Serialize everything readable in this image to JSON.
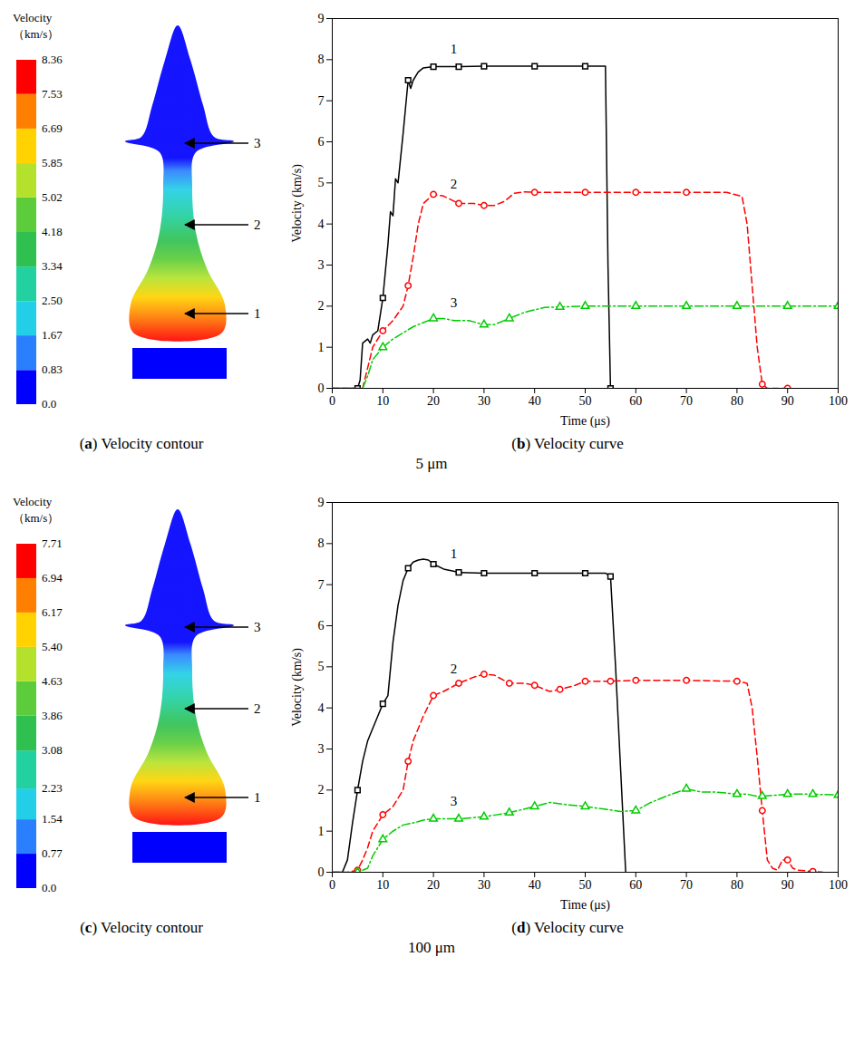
{
  "chart_data": [
    {
      "type": "contour",
      "caption": "(a) Velocity contour",
      "colorbar": {
        "title": "Velocity\n（km/s）",
        "range": [
          0,
          8.36
        ],
        "ticks": [
          {
            "value": 0,
            "label": "0.0"
          },
          0.83,
          1.67,
          {
            "value": 2.5,
            "label": "2.50"
          },
          3.34,
          4.18,
          5.02,
          5.85,
          6.69,
          7.53,
          8.36
        ],
        "colors": [
          "#0000ff",
          "#2a7fff",
          "#22cfe6",
          "#22d0a0",
          "#30c050",
          "#5ccc3a",
          "#b4e22c",
          "#ffd200",
          "#ff8000",
          "#ff0000"
        ]
      },
      "annotations": [
        "1",
        "2",
        "3"
      ]
    },
    {
      "type": "line",
      "caption": "(b) Velocity curve",
      "group_label": "5 μm",
      "xlabel": "Time (μs)",
      "ylabel": "Velocity (km/s)",
      "xlim": [
        0,
        100
      ],
      "xticks": [
        0,
        10,
        20,
        30,
        40,
        50,
        60,
        70,
        80,
        90,
        100
      ],
      "ylim": [
        0,
        9
      ],
      "yticks": [
        0,
        1,
        2,
        3,
        4,
        5,
        6,
        7,
        8,
        9
      ],
      "series": [
        {
          "name": "1",
          "color": "#000000",
          "marker": "square",
          "line_style": "solid",
          "x": [
            0,
            5,
            5.5,
            6,
            7,
            7.5,
            8,
            9,
            10,
            11,
            11.5,
            12,
            12.5,
            13,
            14,
            15,
            15.5,
            16,
            17,
            18,
            20,
            25,
            30,
            40,
            50,
            54,
            54.5,
            55
          ],
          "values": [
            0,
            0,
            0.2,
            1.1,
            1.2,
            1.1,
            1.3,
            1.4,
            2.2,
            3.5,
            4.3,
            4.2,
            5.1,
            5.0,
            6.2,
            7.5,
            7.3,
            7.5,
            7.7,
            7.8,
            7.83,
            7.83,
            7.84,
            7.84,
            7.84,
            7.84,
            3,
            0
          ]
        },
        {
          "name": "2",
          "color": "#ff0000",
          "marker": "circle",
          "line_style": "dashed",
          "x": [
            0,
            3,
            6,
            7,
            8,
            10,
            12,
            14,
            15,
            16,
            17,
            18,
            20,
            22,
            25,
            28,
            30,
            32,
            34,
            36,
            38,
            40,
            50,
            60,
            70,
            78,
            81,
            82,
            83,
            84,
            85,
            86,
            90
          ],
          "values": [
            0,
            0,
            0,
            0.5,
            1.0,
            1.4,
            1.65,
            2.0,
            2.5,
            3.2,
            4.0,
            4.5,
            4.72,
            4.68,
            4.5,
            4.5,
            4.45,
            4.45,
            4.55,
            4.75,
            4.78,
            4.77,
            4.77,
            4.77,
            4.77,
            4.77,
            4.67,
            4.0,
            2.5,
            1.0,
            0.1,
            0,
            0
          ]
        },
        {
          "name": "3",
          "color": "#00cc00",
          "marker": "triangle",
          "line_style": "dashdot",
          "x": [
            0,
            6,
            7,
            8,
            10,
            12,
            14,
            16,
            18,
            20,
            22,
            24,
            27,
            30,
            32,
            35,
            38,
            42,
            45,
            50,
            60,
            70,
            80,
            90,
            100
          ],
          "values": [
            0,
            0,
            0.3,
            0.7,
            1.0,
            1.2,
            1.35,
            1.5,
            1.6,
            1.7,
            1.7,
            1.65,
            1.65,
            1.55,
            1.55,
            1.7,
            1.85,
            1.97,
            1.98,
            2.0,
            2.0,
            2.0,
            2.0,
            2.0,
            2.0
          ]
        }
      ]
    },
    {
      "type": "contour",
      "caption": "(c) Velocity contour",
      "colorbar": {
        "title": "Velocity\n（km/s）",
        "range": [
          0,
          7.71
        ],
        "ticks": [
          {
            "value": 0,
            "label": "0.0"
          },
          0.77,
          1.54,
          2.23,
          3.08,
          3.86,
          4.63,
          {
            "value": 5.4,
            "label": "5.40"
          },
          6.17,
          6.94,
          7.71
        ],
        "colors": [
          "#0000ff",
          "#2a7fff",
          "#22cfe6",
          "#22d0a0",
          "#30c050",
          "#5ccc3a",
          "#b4e22c",
          "#ffd200",
          "#ff8000",
          "#ff0000"
        ]
      },
      "annotations": [
        "1",
        "2",
        "3"
      ]
    },
    {
      "type": "line",
      "caption": "(d) Velocity curve",
      "group_label": "100 μm",
      "xlabel": "Time (μs)",
      "ylabel": "Velocity (km/s)",
      "xlim": [
        0,
        100
      ],
      "xticks": [
        0,
        10,
        20,
        30,
        40,
        50,
        60,
        70,
        80,
        90,
        100
      ],
      "ylim": [
        0,
        9
      ],
      "yticks": [
        0,
        1,
        2,
        3,
        4,
        5,
        6,
        7,
        8,
        9
      ],
      "series": [
        {
          "name": "1",
          "color": "#000000",
          "marker": "square",
          "line_style": "solid",
          "x": [
            0,
            2,
            3,
            4,
            5,
            6,
            7,
            8,
            9,
            10,
            11,
            12,
            13,
            14,
            15,
            16,
            17,
            18,
            19,
            20,
            22,
            25,
            30,
            40,
            50,
            54,
            55,
            56,
            57,
            58
          ],
          "values": [
            0,
            0,
            0.3,
            1.2,
            2.0,
            2.7,
            3.2,
            3.5,
            3.8,
            4.1,
            4.3,
            5.6,
            6.5,
            7.1,
            7.4,
            7.55,
            7.6,
            7.62,
            7.6,
            7.5,
            7.38,
            7.3,
            7.28,
            7.28,
            7.28,
            7.28,
            7.2,
            5,
            2.5,
            0
          ]
        },
        {
          "name": "2",
          "color": "#ff0000",
          "marker": "circle",
          "line_style": "dashed",
          "x": [
            0,
            3,
            5,
            6,
            7,
            8,
            10,
            12,
            14,
            15,
            16,
            18,
            20,
            22,
            25,
            28,
            30,
            32,
            35,
            38,
            40,
            43,
            45,
            48,
            50,
            55,
            60,
            70,
            80,
            82,
            83,
            84,
            85,
            86,
            87,
            88,
            89,
            90,
            91,
            92,
            95,
            97
          ],
          "values": [
            0,
            0,
            0.05,
            0.3,
            0.6,
            1.0,
            1.4,
            1.6,
            2.0,
            2.7,
            3.2,
            3.8,
            4.3,
            4.4,
            4.6,
            4.75,
            4.82,
            4.8,
            4.6,
            4.6,
            4.55,
            4.4,
            4.45,
            4.55,
            4.65,
            4.65,
            4.67,
            4.67,
            4.65,
            4.6,
            4.0,
            2.8,
            1.5,
            0.3,
            0.1,
            0.05,
            0.3,
            0.3,
            0.1,
            0.05,
            0.02,
            0
          ]
        },
        {
          "name": "3",
          "color": "#00cc00",
          "marker": "triangle",
          "line_style": "dashdot",
          "x": [
            0,
            5,
            7,
            8,
            10,
            12,
            14,
            16,
            18,
            20,
            25,
            30,
            35,
            40,
            43,
            46,
            50,
            53,
            57,
            60,
            63,
            66,
            70,
            73,
            76,
            80,
            82,
            84,
            85,
            90,
            95,
            100
          ],
          "values": [
            0,
            0,
            0.1,
            0.4,
            0.8,
            1.0,
            1.15,
            1.2,
            1.27,
            1.3,
            1.3,
            1.35,
            1.45,
            1.6,
            1.7,
            1.65,
            1.6,
            1.55,
            1.48,
            1.5,
            1.7,
            1.85,
            2.03,
            1.95,
            1.95,
            1.9,
            1.9,
            1.85,
            1.85,
            1.9,
            1.9,
            1.88
          ]
        }
      ]
    }
  ]
}
